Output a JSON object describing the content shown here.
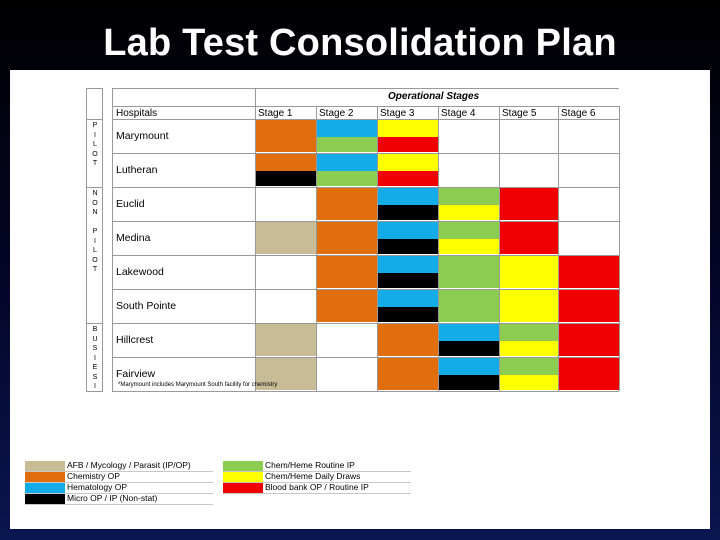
{
  "slide": {
    "title": "Lab Test Consolidation Plan"
  },
  "colors": {
    "tan": "#c8bc96",
    "orange": "#e06e0c",
    "blue": "#14ace8",
    "black": "#000000",
    "green": "#8ccc50",
    "yellow": "#ffff00",
    "red": "#f00000"
  },
  "table": {
    "operational_stages_label": "Operational Stages",
    "hospitals_label": "Hospitals",
    "stages": [
      "Stage 1",
      "Stage 2",
      "Stage 3",
      "Stage 4",
      "Stage 5",
      "Stage 6"
    ],
    "groups": [
      {
        "letters": "P\nI\nL\nO\nT"
      },
      {
        "letters": "N\nO\nN\n\nP\nI\nL\nO\nT"
      },
      {
        "letters": "B\nU\nS\nI\nE\nS\nI"
      }
    ],
    "hospitals": [
      {
        "name": "Marymount",
        "stages": [
          [
            "orange"
          ],
          [
            "blue",
            "green"
          ],
          [
            "yellow",
            "red"
          ],
          [],
          [],
          []
        ]
      },
      {
        "name": "Lutheran",
        "stages": [
          [
            "orange",
            "black"
          ],
          [
            "blue",
            "green"
          ],
          [
            "yellow",
            "red"
          ],
          [],
          [],
          []
        ]
      },
      {
        "name": "Euclid",
        "stages": [
          [],
          [
            "orange"
          ],
          [
            "blue",
            "black"
          ],
          [
            "green",
            "yellow"
          ],
          [
            "red"
          ],
          []
        ]
      },
      {
        "name": "Medina",
        "stages": [
          [
            "tan"
          ],
          [
            "orange"
          ],
          [
            "blue",
            "black"
          ],
          [
            "green",
            "yellow"
          ],
          [
            "red"
          ],
          []
        ]
      },
      {
        "name": "Lakewood",
        "stages": [
          [],
          [
            "orange"
          ],
          [
            "blue",
            "black"
          ],
          [
            "green"
          ],
          [
            "yellow"
          ],
          [
            "red"
          ]
        ]
      },
      {
        "name": "South Pointe",
        "stages": [
          [],
          [
            "orange"
          ],
          [
            "blue",
            "black"
          ],
          [
            "green"
          ],
          [
            "yellow"
          ],
          [
            "red"
          ]
        ]
      },
      {
        "name": "Hillcrest",
        "stages": [
          [
            "tan"
          ],
          [],
          [
            "orange"
          ],
          [
            "blue",
            "black"
          ],
          [
            "green",
            "yellow"
          ],
          [
            "red"
          ]
        ]
      },
      {
        "name": "Fairview",
        "stages": [
          [
            "tan"
          ],
          [],
          [
            "orange"
          ],
          [
            "blue",
            "black"
          ],
          [
            "green",
            "yellow"
          ],
          [
            "red"
          ]
        ]
      }
    ],
    "footnote": "*Marymount includes Marymount South facility for chemistry"
  },
  "legend": {
    "left": [
      {
        "label": "AFB / Mycology / Parasit (IP/OP)",
        "color": "tan"
      },
      {
        "label": "Chemistry OP",
        "color": "orange"
      },
      {
        "label": "Hematology OP",
        "color": "blue"
      },
      {
        "label": "Micro OP / IP (Non-stat)",
        "color": "black"
      }
    ],
    "right": [
      {
        "label": "Chem/Heme Routine IP",
        "color": "green"
      },
      {
        "label": "Chem/Heme Daily Draws",
        "color": "yellow"
      },
      {
        "label": "Blood bank OP / Routine IP",
        "color": "red"
      }
    ]
  }
}
